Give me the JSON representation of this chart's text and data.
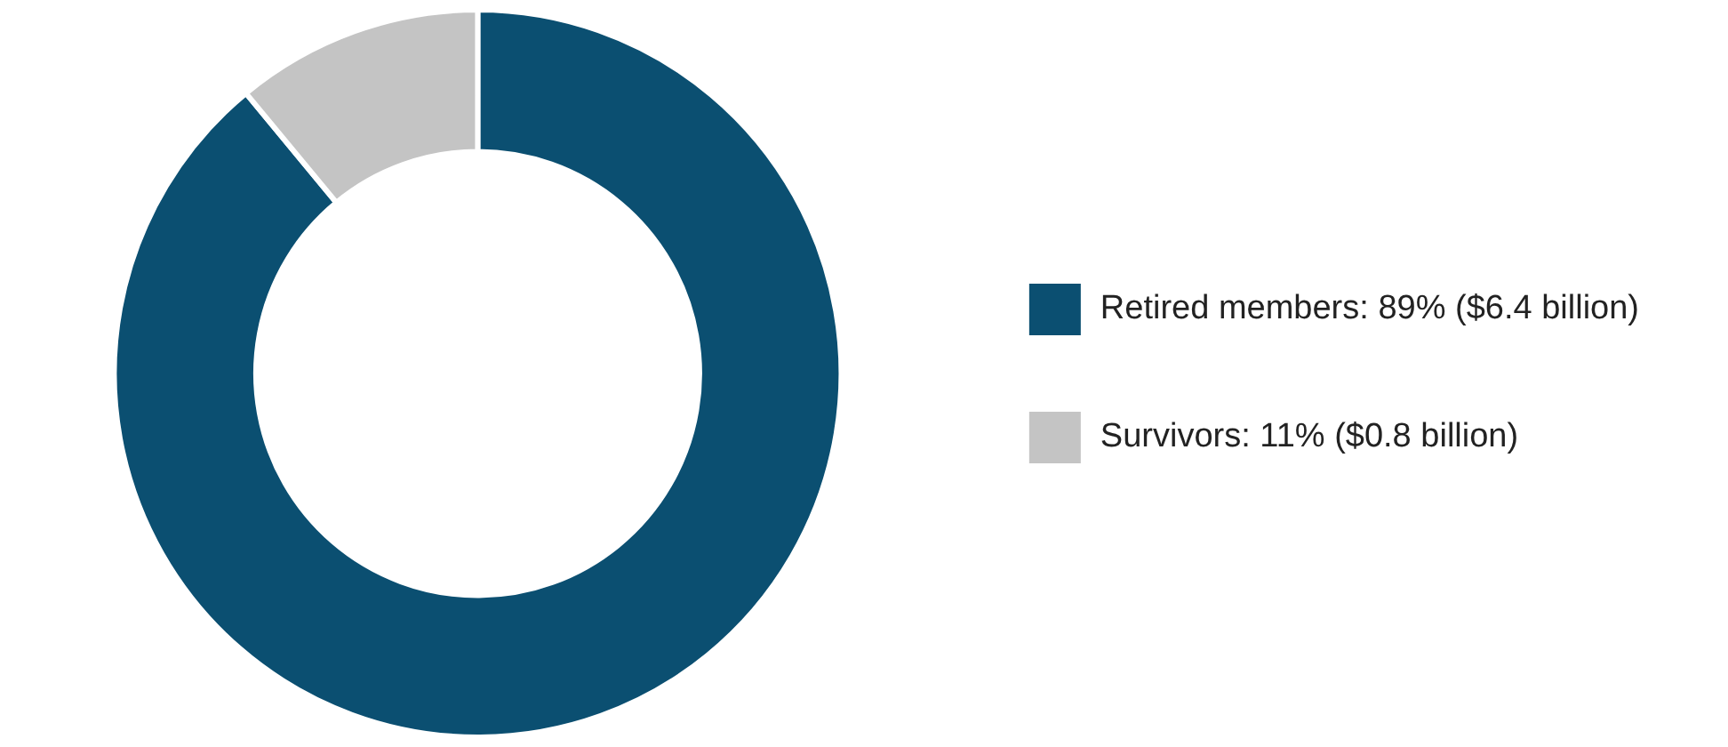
{
  "chart_data": {
    "type": "donut",
    "categories": [
      "Retired members: 89% ($6.4 billion)",
      "Survivors: 11% ($0.8 billion)"
    ],
    "values": [
      89,
      11
    ],
    "colors": [
      "#0b4f71",
      "#c4c4c4"
    ],
    "legend": "right"
  }
}
